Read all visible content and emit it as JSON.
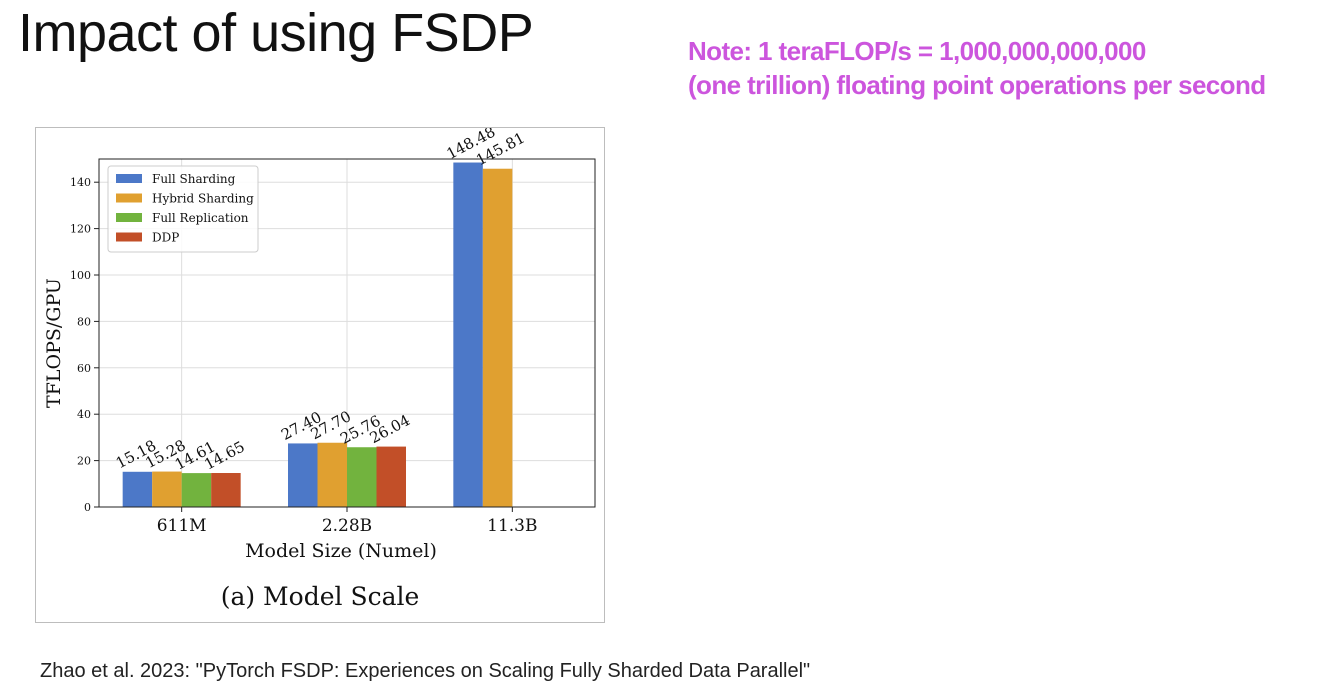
{
  "slide": {
    "title": "Impact of using FSDP",
    "note_line1": "Note: 1 teraFLOP/s = 1,000,000,000,000",
    "note_line2": "(one trillion) floating point operations per second",
    "citation": "Zhao et al. 2023: \"PyTorch FSDP: Experiences on Scaling Fully Sharded Data Parallel\""
  },
  "chart_data": {
    "type": "bar",
    "caption": "(a) Model Scale",
    "xlabel": "Model Size (Numel)",
    "ylabel": "TFLOPS/GPU",
    "categories": [
      "611M",
      "2.28B",
      "11.3B"
    ],
    "ylim": [
      0,
      150
    ],
    "yticks": [
      0,
      20,
      40,
      60,
      80,
      100,
      120,
      140
    ],
    "grid": true,
    "legend_position": "top-left",
    "series": [
      {
        "name": "Full Sharding",
        "color": "#4c78c8",
        "values": [
          15.18,
          27.4,
          148.48
        ],
        "labels": [
          "15.18",
          "27.40",
          "148.48"
        ]
      },
      {
        "name": "Hybrid Sharding",
        "color": "#e0a030",
        "values": [
          15.28,
          27.7,
          145.81
        ],
        "labels": [
          "15.28",
          "27.70",
          "145.81"
        ]
      },
      {
        "name": "Full Replication",
        "color": "#72b33e",
        "values": [
          14.61,
          25.76,
          null
        ],
        "labels": [
          "14.61",
          "25.76",
          ""
        ]
      },
      {
        "name": "DDP",
        "color": "#c24f28",
        "values": [
          14.65,
          26.04,
          null
        ],
        "labels": [
          "14.65",
          "26.04",
          ""
        ]
      }
    ]
  }
}
